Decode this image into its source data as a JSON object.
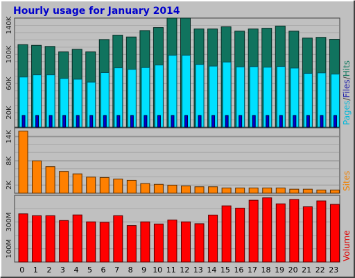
{
  "chart_data": [
    {
      "type": "bar",
      "title": "Hourly usage for January 2014",
      "categories": [
        "0",
        "1",
        "2",
        "3",
        "4",
        "5",
        "6",
        "7",
        "8",
        "9",
        "10",
        "11",
        "12",
        "13",
        "14",
        "15",
        "16",
        "17",
        "18",
        "19",
        "20",
        "21",
        "22",
        "23"
      ],
      "ylim": [
        0,
        150000
      ],
      "yticks": [
        {
          "value": 20000,
          "label": "20K"
        },
        {
          "value": 60000,
          "label": "60K"
        },
        {
          "value": 100000,
          "label": "100K"
        },
        {
          "value": 140000,
          "label": "140K"
        }
      ],
      "ylabel_parts": [
        {
          "text": "Pages",
          "color": "#00b8d8"
        },
        {
          "text": "/",
          "color": "#404040"
        },
        {
          "text": "Files",
          "color": "#1a1aa8"
        },
        {
          "text": "/",
          "color": "#404040"
        },
        {
          "text": "Hits",
          "color": "#157a60"
        }
      ],
      "series": [
        {
          "name": "Hits",
          "color": "#10735e",
          "values": [
            113500,
            112500,
            111000,
            103500,
            107000,
            103500,
            120500,
            126500,
            124000,
            132800,
            137000,
            150000,
            150000,
            135000,
            135000,
            138000,
            132000,
            135000,
            136000,
            139000,
            132000,
            122500,
            123500,
            120800
          ]
        },
        {
          "name": "Files",
          "color": "#00e0ff",
          "values": [
            69000,
            72000,
            72000,
            67000,
            66000,
            62000,
            75000,
            81600,
            79500,
            82000,
            85500,
            99000,
            99000,
            86300,
            84000,
            89600,
            83000,
            83300,
            82500,
            83500,
            81300,
            74000,
            74700,
            73000
          ]
        },
        {
          "name": "Pages",
          "color": "#0000cc",
          "values": [
            16000,
            16000,
            16000,
            16000,
            16000,
            16000,
            16000,
            16000,
            16000,
            16000,
            16000,
            16000,
            16000,
            16000,
            16000,
            16000,
            16000,
            16000,
            16000,
            16000,
            16000,
            16000,
            16000,
            16000
          ]
        }
      ]
    },
    {
      "type": "bar",
      "categories": [
        "0",
        "1",
        "2",
        "3",
        "4",
        "5",
        "6",
        "7",
        "8",
        "9",
        "10",
        "11",
        "12",
        "13",
        "14",
        "15",
        "16",
        "17",
        "18",
        "19",
        "20",
        "21",
        "22",
        "23"
      ],
      "ylim": [
        0,
        16200
      ],
      "yticks": [
        {
          "value": 2000,
          "label": "2K"
        },
        {
          "value": 8000,
          "label": "8K"
        },
        {
          "value": 14000,
          "label": "14K"
        }
      ],
      "ylabel": "Sites",
      "ylabel_color": "#f08000",
      "series": [
        {
          "name": "Sites",
          "color": "#ff8000",
          "values": [
            15400,
            8000,
            6600,
            5400,
            4800,
            4000,
            3900,
            3500,
            3200,
            2400,
            2200,
            2000,
            1800,
            1600,
            1600,
            1300,
            1300,
            1300,
            1300,
            1300,
            1000,
            1000,
            800,
            800
          ]
        }
      ]
    },
    {
      "type": "bar",
      "categories": [
        "0",
        "1",
        "2",
        "3",
        "4",
        "5",
        "6",
        "7",
        "8",
        "9",
        "10",
        "11",
        "12",
        "13",
        "14",
        "15",
        "16",
        "17",
        "18",
        "19",
        "20",
        "21",
        "22",
        "23"
      ],
      "ylim": [
        0,
        500
      ],
      "ylabel": "Volume",
      "ylabel_color": "#e00000",
      "yticks": [
        {
          "value": 100,
          "label": "100M"
        },
        {
          "value": 300,
          "label": "300M"
        }
      ],
      "xlabels": [
        "0",
        "1",
        "2",
        "3",
        "4",
        "5",
        "6",
        "7",
        "8",
        "9",
        "10",
        "11",
        "12",
        "13",
        "14",
        "15",
        "16",
        "17",
        "18",
        "19",
        "20",
        "21",
        "22",
        "23"
      ],
      "series": [
        {
          "name": "Volume",
          "color": "#ff0000",
          "values": [
            361,
            347,
            347,
            311,
            353,
            301,
            298,
            347,
            273,
            301,
            285,
            315,
            301,
            287,
            352,
            421,
            404,
            463,
            481,
            436,
            469,
            414,
            458,
            432
          ]
        }
      ]
    }
  ]
}
